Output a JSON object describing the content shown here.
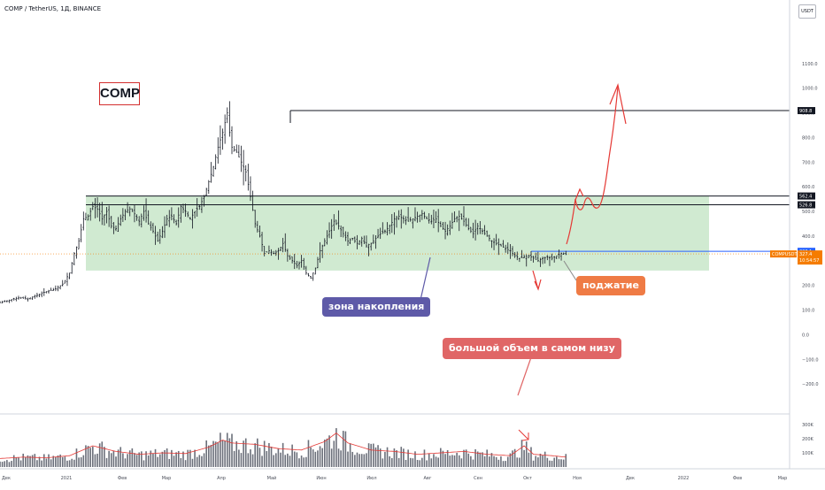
{
  "header": {
    "symbol_line": "COMP / TetherUS, 1Д, BINANCE",
    "currency": "USDT"
  },
  "title_label": "COMP",
  "annotations": {
    "accumulation_zone": "зона накопления",
    "squeeze": "поджатие",
    "big_volume": "большой объем в самом низу"
  },
  "price_labels": {
    "target": "908.8",
    "upper_resistance": "562.4",
    "lower_resistance": "526.8",
    "blue_level": "338.1",
    "symbol_tag": "COMPUSDT",
    "current_price": "327.4",
    "countdown": "10:54:57"
  },
  "colors": {
    "zone_fill": "#c8e6c9",
    "blue_line": "#2962ff",
    "orange": "#f57c00",
    "accum_note": "#5e5aa8",
    "squeeze_note": "#ef7b45",
    "volume_note": "#e06666",
    "arrow_red": "#e53935",
    "ma_red": "#e53935"
  },
  "chart_data": {
    "type": "candlestick",
    "title": "",
    "xlabel": "",
    "ylabel": "",
    "ylim": [
      -300,
      1300
    ],
    "y_ticks": [
      "1100.0",
      "1000.0",
      "900.0",
      "800.0",
      "700.0",
      "600.0",
      "500.0",
      "400.0",
      "300.0",
      "200.0",
      "100.0",
      "0.0",
      "−100.0",
      "−200.0"
    ],
    "x_ticks": [
      "Дек",
      "2021",
      "Фев",
      "Мар",
      "Апр",
      "Май",
      "Июн",
      "Июл",
      "Авг",
      "Сен",
      "Окт",
      "Ноя",
      "Дек",
      "2022",
      "Фев",
      "Мар"
    ],
    "close_path": [
      [
        0,
        130
      ],
      [
        4,
        140
      ],
      [
        8,
        150
      ],
      [
        12,
        145
      ],
      [
        16,
        160
      ],
      [
        20,
        175
      ],
      [
        24,
        185
      ],
      [
        27,
        205
      ],
      [
        30,
        250
      ],
      [
        32,
        330
      ],
      [
        34,
        380
      ],
      [
        36,
        470
      ],
      [
        38,
        480
      ],
      [
        40,
        520
      ],
      [
        42,
        510
      ],
      [
        44,
        470
      ],
      [
        46,
        500
      ],
      [
        48,
        440
      ],
      [
        50,
        430
      ],
      [
        52,
        470
      ],
      [
        54,
        500
      ],
      [
        56,
        510
      ],
      [
        58,
        490
      ],
      [
        60,
        460
      ],
      [
        62,
        500
      ],
      [
        64,
        450
      ],
      [
        66,
        420
      ],
      [
        68,
        380
      ],
      [
        70,
        420
      ],
      [
        72,
        470
      ],
      [
        74,
        480
      ],
      [
        76,
        450
      ],
      [
        78,
        520
      ],
      [
        80,
        500
      ],
      [
        82,
        470
      ],
      [
        84,
        500
      ],
      [
        86,
        520
      ],
      [
        88,
        560
      ],
      [
        90,
        620
      ],
      [
        92,
        680
      ],
      [
        94,
        760
      ],
      [
        96,
        820
      ],
      [
        98,
        900
      ],
      [
        99,
        820
      ],
      [
        100,
        760
      ],
      [
        102,
        740
      ],
      [
        104,
        700
      ],
      [
        106,
        660
      ],
      [
        108,
        560
      ],
      [
        110,
        450
      ],
      [
        112,
        400
      ],
      [
        114,
        330
      ],
      [
        116,
        340
      ],
      [
        118,
        330
      ],
      [
        120,
        340
      ],
      [
        122,
        370
      ],
      [
        124,
        320
      ],
      [
        126,
        300
      ],
      [
        128,
        280
      ],
      [
        130,
        300
      ],
      [
        132,
        250
      ],
      [
        134,
        230
      ],
      [
        136,
        270
      ],
      [
        138,
        340
      ],
      [
        140,
        380
      ],
      [
        142,
        420
      ],
      [
        144,
        460
      ],
      [
        146,
        440
      ],
      [
        148,
        410
      ],
      [
        150,
        380
      ],
      [
        152,
        390
      ],
      [
        154,
        370
      ],
      [
        156,
        390
      ],
      [
        158,
        360
      ],
      [
        160,
        370
      ],
      [
        162,
        390
      ],
      [
        164,
        410
      ],
      [
        166,
        420
      ],
      [
        168,
        440
      ],
      [
        170,
        470
      ],
      [
        172,
        480
      ],
      [
        174,
        470
      ],
      [
        176,
        460
      ],
      [
        178,
        470
      ],
      [
        180,
        480
      ],
      [
        182,
        490
      ],
      [
        184,
        470
      ],
      [
        186,
        460
      ],
      [
        188,
        470
      ],
      [
        190,
        440
      ],
      [
        192,
        420
      ],
      [
        194,
        440
      ],
      [
        196,
        470
      ],
      [
        198,
        480
      ],
      [
        200,
        460
      ],
      [
        202,
        430
      ],
      [
        204,
        410
      ],
      [
        206,
        440
      ],
      [
        208,
        420
      ],
      [
        210,
        400
      ],
      [
        212,
        380
      ],
      [
        214,
        370
      ],
      [
        216,
        360
      ],
      [
        218,
        350
      ],
      [
        220,
        340
      ],
      [
        222,
        320
      ],
      [
        224,
        310
      ],
      [
        226,
        315
      ],
      [
        228,
        320
      ],
      [
        230,
        310
      ],
      [
        232,
        300
      ],
      [
        234,
        310
      ],
      [
        236,
        315
      ],
      [
        238,
        310
      ],
      [
        240,
        320
      ],
      [
        242,
        330
      ],
      [
        244,
        327
      ]
    ],
    "volume_ylim": [
      0,
      350000
    ],
    "volume_ticks": [
      "300K",
      "200K",
      "100K"
    ],
    "volume_path": [
      [
        0,
        60000
      ],
      [
        10,
        70000
      ],
      [
        20,
        65000
      ],
      [
        30,
        80000
      ],
      [
        40,
        150000
      ],
      [
        50,
        110000
      ],
      [
        60,
        90000
      ],
      [
        70,
        100000
      ],
      [
        80,
        95000
      ],
      [
        90,
        140000
      ],
      [
        96,
        190000
      ],
      [
        100,
        170000
      ],
      [
        110,
        160000
      ],
      [
        120,
        130000
      ],
      [
        130,
        120000
      ],
      [
        140,
        180000
      ],
      [
        145,
        240000
      ],
      [
        150,
        170000
      ],
      [
        160,
        120000
      ],
      [
        170,
        110000
      ],
      [
        180,
        90000
      ],
      [
        190,
        100000
      ],
      [
        200,
        110000
      ],
      [
        210,
        90000
      ],
      [
        220,
        80000
      ],
      [
        226,
        150000
      ],
      [
        230,
        90000
      ],
      [
        238,
        80000
      ],
      [
        244,
        70000
      ]
    ],
    "levels": {
      "target": 908.8,
      "upper_resistance": 562.4,
      "lower_resistance": 526.8,
      "blue_level": 338.1,
      "current_price": 327.4
    },
    "accumulation_zone": {
      "top": 562.4,
      "bottom": 260
    }
  }
}
